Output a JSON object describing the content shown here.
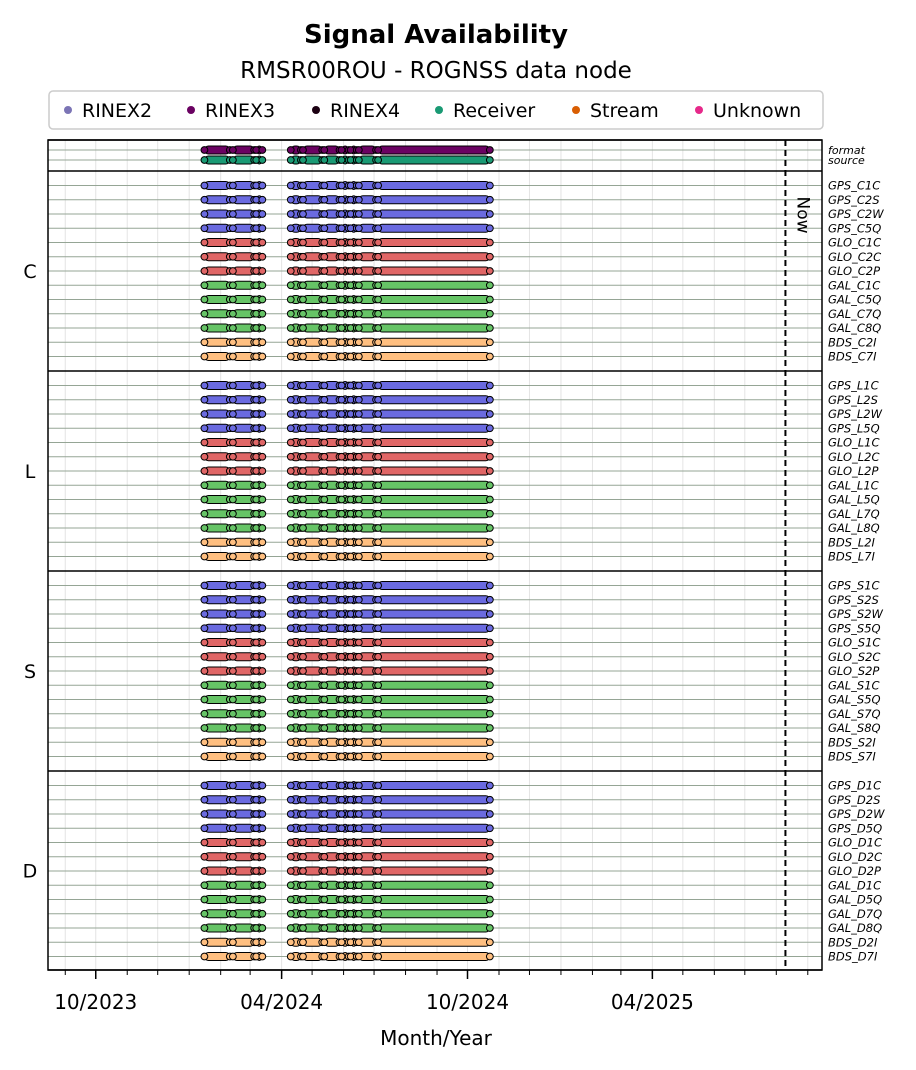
{
  "chart_data": {
    "type": "timeline",
    "title": "Signal Availability",
    "subtitle": "RMSR00ROU - ROGNSS data node",
    "xlabel": "Month/Year",
    "xlim": [
      "2023-08-15",
      "2025-09-15"
    ],
    "x_ticks": [
      "10/2023",
      "04/2024",
      "10/2024",
      "04/2025"
    ],
    "now_label": "Now",
    "now_date": "2025-08-10",
    "legend": [
      {
        "name": "RINEX2",
        "color": "#7b74b5"
      },
      {
        "name": "RINEX3",
        "color": "#6a0262"
      },
      {
        "name": "RINEX4",
        "color": "#1c0012"
      },
      {
        "name": "Receiver",
        "color": "#1a9a74"
      },
      {
        "name": "Stream",
        "color": "#d95e02"
      },
      {
        "name": "Unknown",
        "color": "#e6298a"
      }
    ],
    "constellation_colors": {
      "GPS": "#6a6ae0",
      "GLO": "#e06666",
      "GAL": "#66c466",
      "BDS": "#ffbf80"
    },
    "format_color": "#6a0262",
    "source_color": "#1a9a74",
    "segments": [
      [
        "2024-01-16",
        "2024-02-10"
      ],
      [
        "2024-02-13",
        "2024-03-05"
      ],
      [
        "2024-03-07",
        "2024-03-13"
      ],
      [
        "2024-04-10",
        "2024-04-20"
      ],
      [
        "2024-04-22",
        "2024-05-11"
      ],
      [
        "2024-05-13",
        "2024-05-28"
      ],
      [
        "2024-05-30",
        "2024-06-06"
      ],
      [
        "2024-06-08",
        "2024-06-14"
      ],
      [
        "2024-06-16",
        "2024-07-03"
      ],
      [
        "2024-07-05",
        "2024-10-23"
      ]
    ],
    "top_rows": [
      "format",
      "source"
    ],
    "groups": [
      {
        "name": "C",
        "rows": [
          "GPS_C1C",
          "GPS_C2S",
          "GPS_C2W",
          "GPS_C5Q",
          "GLO_C1C",
          "GLO_C2C",
          "GLO_C2P",
          "GAL_C1C",
          "GAL_C5Q",
          "GAL_C7Q",
          "GAL_C8Q",
          "BDS_C2I",
          "BDS_C7I"
        ]
      },
      {
        "name": "L",
        "rows": [
          "GPS_L1C",
          "GPS_L2S",
          "GPS_L2W",
          "GPS_L5Q",
          "GLO_L1C",
          "GLO_L2C",
          "GLO_L2P",
          "GAL_L1C",
          "GAL_L5Q",
          "GAL_L7Q",
          "GAL_L8Q",
          "BDS_L2I",
          "BDS_L7I"
        ]
      },
      {
        "name": "S",
        "rows": [
          "GPS_S1C",
          "GPS_S2S",
          "GPS_S2W",
          "GPS_S5Q",
          "GLO_S1C",
          "GLO_S2C",
          "GLO_S2P",
          "GAL_S1C",
          "GAL_S5Q",
          "GAL_S7Q",
          "GAL_S8Q",
          "BDS_S2I",
          "BDS_S7I"
        ]
      },
      {
        "name": "D",
        "rows": [
          "GPS_D1C",
          "GPS_D2S",
          "GPS_D2W",
          "GPS_D5Q",
          "GLO_D1C",
          "GLO_D2C",
          "GLO_D2P",
          "GAL_D1C",
          "GAL_D5Q",
          "GAL_D7Q",
          "GAL_D8Q",
          "BDS_D2I",
          "BDS_D7I"
        ]
      }
    ]
  }
}
